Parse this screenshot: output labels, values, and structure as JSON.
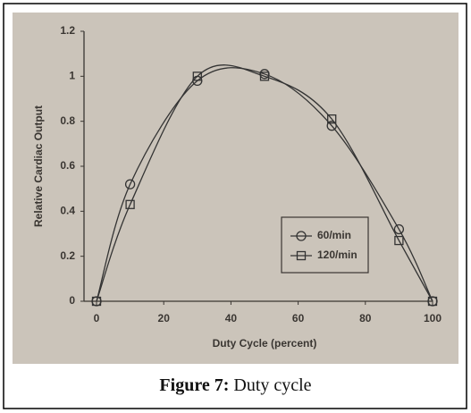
{
  "chart_data": {
    "type": "line",
    "x": [
      0,
      10,
      30,
      50,
      70,
      90,
      100
    ],
    "series": [
      {
        "name": "60/min",
        "color": "#333333",
        "marker": "circle",
        "values": [
          0,
          0.52,
          0.98,
          1.01,
          0.78,
          0.32,
          0
        ]
      },
      {
        "name": "120/min",
        "color": "#333333",
        "marker": "square",
        "values": [
          0,
          0.43,
          1.0,
          1.0,
          0.81,
          0.27,
          0
        ]
      }
    ],
    "xlim": [
      0,
      100
    ],
    "xticks": [
      0,
      20,
      40,
      60,
      80,
      100
    ],
    "ylim": [
      0,
      1.2
    ],
    "yticks": [
      0,
      0.2,
      0.4,
      0.6,
      0.8,
      1,
      1.2
    ],
    "xlabel": "Duty Cycle (percent)",
    "ylabel": "Relative Cardiac Output",
    "legend": "lower right",
    "smooth": true
  },
  "caption": {
    "label": "Figure 7:",
    "text": "Duty cycle"
  }
}
